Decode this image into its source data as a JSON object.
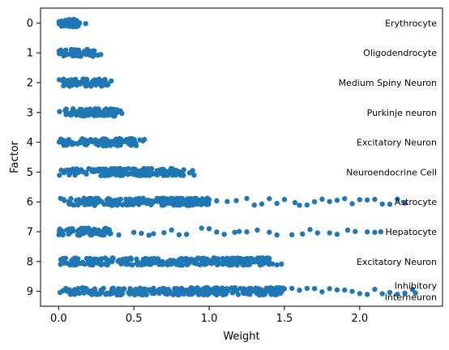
{
  "chart_data": {
    "type": "scatter",
    "subtype": "strip",
    "title": "",
    "xlabel": "Weight",
    "ylabel": "Factor",
    "xlim": [
      -0.12,
      2.55
    ],
    "ylim": [
      9.5,
      -0.5
    ],
    "x_ticks": [
      "0.0",
      "0.5",
      "1.0",
      "1.5",
      "2.0"
    ],
    "x_tick_values": [
      0.0,
      0.5,
      1.0,
      1.5,
      2.0
    ],
    "y_ticks": [
      "0",
      "1",
      "2",
      "3",
      "4",
      "5",
      "6",
      "7",
      "8",
      "9"
    ],
    "grid": false,
    "marker_color": "#1f77b4",
    "factors": [
      {
        "factor": 0,
        "label": "Erythrocyte",
        "dense_max": 0.14,
        "outliers": [
          0.18
        ]
      },
      {
        "factor": 1,
        "label": "Oligodendrocyte",
        "dense_max": 0.24,
        "outliers": [
          0.26,
          0.28
        ]
      },
      {
        "factor": 2,
        "label": "Medium Spiny Neuron",
        "dense_max": 0.33,
        "outliers": [
          0.35
        ]
      },
      {
        "factor": 3,
        "label": "Purkinje neuron",
        "dense_max": 0.4,
        "outliers": [
          0.41,
          0.42
        ]
      },
      {
        "factor": 4,
        "label": "Excitatory Neuron",
        "dense_max": 0.52,
        "outliers": [
          0.54,
          0.56,
          0.57
        ]
      },
      {
        "factor": 5,
        "label": "Neuroendocrine Cell",
        "dense_max": 0.85,
        "outliers": [
          0.87,
          0.89,
          0.9
        ]
      },
      {
        "factor": 6,
        "label": "Astrocyte",
        "dense_max": 1.0,
        "outliers": [
          1.05,
          1.12,
          1.18,
          1.25,
          1.3,
          1.35,
          1.4,
          1.45,
          1.5,
          1.57,
          1.6,
          1.65,
          1.7,
          1.75,
          1.8,
          1.85,
          1.9,
          1.95,
          2.0,
          2.05,
          2.1,
          2.15,
          2.2,
          2.25,
          2.3
        ]
      },
      {
        "factor": 7,
        "label": "Hepatocyte",
        "dense_max": 0.35,
        "outliers": [
          0.4,
          0.5,
          0.55,
          0.6,
          0.63,
          0.7,
          0.75,
          0.8,
          0.85,
          0.95,
          1.0,
          1.05,
          1.1,
          1.17,
          1.2,
          1.25,
          1.32,
          1.4,
          1.45,
          1.55,
          1.62,
          1.67,
          1.72,
          1.8,
          1.85,
          1.92,
          1.97,
          2.05,
          2.1,
          2.14
        ]
      },
      {
        "factor": 8,
        "label": "Excitatory Neuron",
        "dense_max": 1.4,
        "outliers": [
          1.42,
          1.45,
          1.48
        ]
      },
      {
        "factor": 9,
        "label": "Inhibitory\nInterneuron",
        "dense_max": 1.5,
        "outliers": [
          1.55,
          1.6,
          1.65,
          1.7,
          1.75,
          1.8,
          1.85,
          1.9,
          1.95,
          2.0,
          2.05,
          2.1,
          2.15,
          2.2,
          2.25,
          2.3,
          2.35,
          2.37
        ]
      }
    ]
  }
}
